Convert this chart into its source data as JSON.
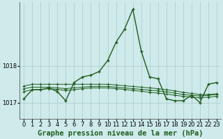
{
  "title": "Graphe pression niveau de la mer (hPa)",
  "background_color": "#ceeaea",
  "line_color": "#1e5c1e",
  "grid_color_major": "#adc8c8",
  "grid_color_minor": "#c4dede",
  "xlim": [
    -0.5,
    23.5
  ],
  "ylim": [
    1016.55,
    1019.75
  ],
  "yticks": [
    1017,
    1018
  ],
  "xticks": [
    0,
    1,
    2,
    3,
    4,
    5,
    6,
    7,
    8,
    9,
    10,
    11,
    12,
    13,
    14,
    15,
    16,
    17,
    18,
    19,
    20,
    21,
    22,
    23
  ],
  "series_main": {
    "x": [
      0,
      1,
      2,
      3,
      4,
      5,
      6,
      7,
      8,
      9,
      10,
      11,
      12,
      13,
      14,
      15,
      16,
      17,
      18,
      19,
      20,
      21,
      22,
      23
    ],
    "y": [
      1017.1,
      1017.35,
      1017.35,
      1017.4,
      1017.3,
      1017.05,
      1017.55,
      1017.7,
      1017.75,
      1017.85,
      1018.15,
      1018.65,
      1019.0,
      1019.55,
      1018.4,
      1017.7,
      1017.65,
      1017.1,
      1017.05,
      1017.05,
      1017.2,
      1017.0,
      1017.5,
      1017.55
    ]
  },
  "series_smooth": [
    {
      "x": [
        0,
        1,
        2,
        3,
        4,
        5,
        6,
        7,
        8,
        9,
        10,
        11,
        12,
        13,
        14,
        15,
        16,
        17,
        18,
        19,
        20,
        21,
        22,
        23
      ],
      "y": [
        1017.45,
        1017.5,
        1017.5,
        1017.5,
        1017.5,
        1017.5,
        1017.5,
        1017.5,
        1017.5,
        1017.5,
        1017.5,
        1017.48,
        1017.46,
        1017.44,
        1017.42,
        1017.4,
        1017.38,
        1017.35,
        1017.32,
        1017.28,
        1017.25,
        1017.22,
        1017.22,
        1017.24
      ]
    },
    {
      "x": [
        0,
        1,
        2,
        3,
        4,
        5,
        6,
        7,
        8,
        9,
        10,
        11,
        12,
        13,
        14,
        15,
        16,
        17,
        18,
        19,
        20,
        21,
        22,
        23
      ],
      "y": [
        1017.38,
        1017.42,
        1017.42,
        1017.42,
        1017.4,
        1017.38,
        1017.4,
        1017.42,
        1017.44,
        1017.44,
        1017.44,
        1017.42,
        1017.4,
        1017.38,
        1017.36,
        1017.34,
        1017.32,
        1017.29,
        1017.26,
        1017.22,
        1017.2,
        1017.18,
        1017.2,
        1017.22
      ]
    },
    {
      "x": [
        0,
        1,
        2,
        3,
        4,
        5,
        6,
        7,
        8,
        9,
        10,
        11,
        12,
        13,
        14,
        15,
        16,
        17,
        18,
        19,
        20,
        21,
        22,
        23
      ],
      "y": [
        1017.3,
        1017.35,
        1017.36,
        1017.38,
        1017.36,
        1017.33,
        1017.35,
        1017.38,
        1017.4,
        1017.4,
        1017.4,
        1017.38,
        1017.36,
        1017.33,
        1017.31,
        1017.28,
        1017.26,
        1017.23,
        1017.2,
        1017.17,
        1017.15,
        1017.13,
        1017.15,
        1017.17
      ]
    }
  ],
  "title_fontsize": 7.5,
  "tick_fontsize": 6.0
}
